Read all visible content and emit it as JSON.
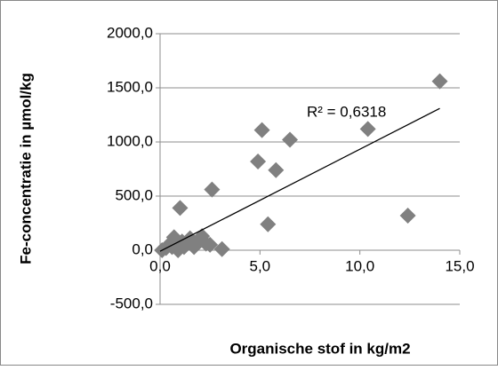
{
  "chart_data": {
    "type": "scatter",
    "x_label": "Organische stof in kg/m2",
    "y_label": "Fe-concentratie in µmol/kg",
    "color": "#808080",
    "grid": true,
    "xlim": [
      0,
      15
    ],
    "ylim": [
      -500,
      2000
    ],
    "xticks": [
      {
        "value": 0,
        "label": "0,0"
      },
      {
        "value": 5,
        "label": "5,0"
      },
      {
        "value": 10,
        "label": "10,0"
      },
      {
        "value": 15,
        "label": "15,0"
      }
    ],
    "yticks": [
      {
        "value": -500,
        "label": "-500,0"
      },
      {
        "value": 0,
        "label": "0,0"
      },
      {
        "value": 500,
        "label": "500,0"
      },
      {
        "value": 1000,
        "label": "1000,0"
      },
      {
        "value": 1500,
        "label": "1500,0"
      },
      {
        "value": 2000,
        "label": "2000,0"
      }
    ],
    "x": [
      14.0,
      10.4,
      12.4,
      5.1,
      6.5,
      4.9,
      5.8,
      2.6,
      5.4,
      1.0,
      3.1,
      2.3,
      2.1,
      1.9,
      1.5,
      0.7,
      0.5,
      0.3,
      0.1,
      0.9,
      1.2,
      1.7,
      2.5,
      0.6,
      1.4,
      2.0,
      0.8,
      1.1
    ],
    "y": [
      1560,
      1120,
      320,
      1110,
      1020,
      820,
      740,
      560,
      240,
      390,
      10,
      60,
      130,
      90,
      110,
      120,
      60,
      20,
      0,
      0,
      30,
      30,
      50,
      30,
      70,
      100,
      90,
      80
    ],
    "trendline": {
      "label": "R² = 0,6318",
      "x": [
        0,
        14
      ],
      "y": [
        -10,
        1310
      ],
      "color": "#000000"
    }
  }
}
